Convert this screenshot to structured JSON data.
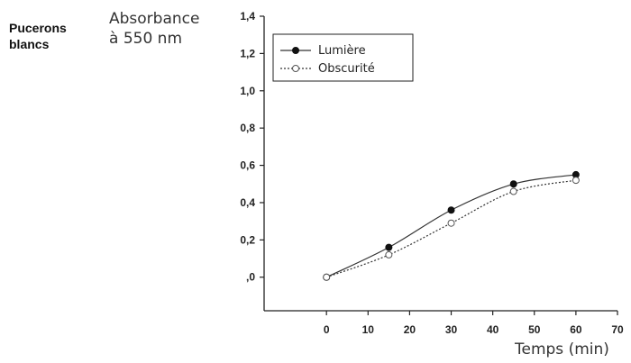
{
  "caption": {
    "line1": "Pucerons",
    "line2": "blancs"
  },
  "chart_data": {
    "type": "line",
    "ylabel_line1": "Absorbance",
    "ylabel_line2": "à 550 nm",
    "xlabel": "Temps (min)",
    "xlim": [
      -15,
      70
    ],
    "ylim": [
      -0.18,
      1.4
    ],
    "x_ticks": [
      0,
      10,
      20,
      30,
      40,
      50,
      60,
      70
    ],
    "x_tick_labels": [
      "0",
      "10",
      "20",
      "30",
      "40",
      "50",
      "60",
      "70"
    ],
    "y_ticks": [
      0,
      0.2,
      0.4,
      0.6,
      0.8,
      1.0,
      1.2,
      1.4
    ],
    "y_tick_labels": [
      ",0",
      "0,2",
      "0,4",
      "0,6",
      "0,8",
      "1,0",
      "1,2",
      "1,4"
    ],
    "legend_position": "top-left",
    "grid": false,
    "series": [
      {
        "name": "Lumière",
        "marker": "filled-circle",
        "line": "solid",
        "x": [
          0,
          15,
          30,
          45,
          60
        ],
        "y": [
          0.0,
          0.16,
          0.36,
          0.5,
          0.55
        ]
      },
      {
        "name": "Obscurité",
        "marker": "open-circle",
        "line": "dotted",
        "x": [
          0,
          15,
          30,
          45,
          60
        ],
        "y": [
          0.0,
          0.12,
          0.29,
          0.46,
          0.52
        ]
      }
    ]
  }
}
